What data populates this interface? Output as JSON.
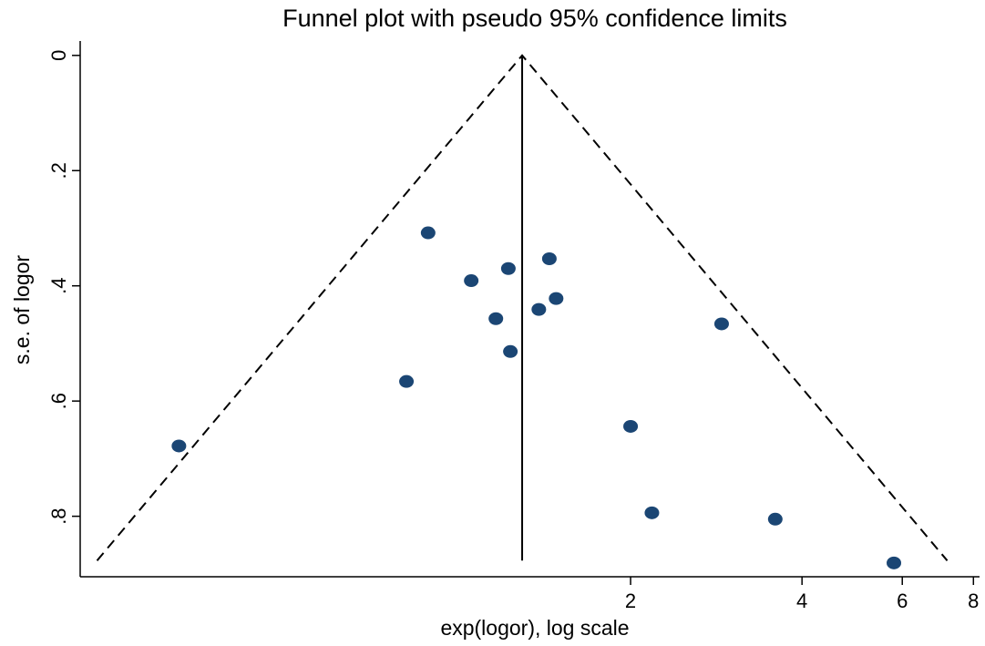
{
  "chart_data": {
    "type": "scatter",
    "title": "Funnel plot with pseudo 95% confidence limits",
    "x_label": "exp(logor), log scale",
    "y_label": "s.e. of logor",
    "x_log_scale": true,
    "y_reversed": true,
    "xlim": [
      0.216,
      8.2
    ],
    "ylim": [
      -0.025,
      0.905
    ],
    "xticks": [
      2,
      4,
      6,
      8
    ],
    "yticks": [
      0,
      {
        "value": 0.2,
        "label": ".2"
      },
      {
        "value": 0.4,
        "label": ".4"
      },
      {
        "value": 0.6,
        "label": ".6"
      },
      {
        "value": 0.8,
        "label": ".8"
      }
    ],
    "funnel": {
      "center": 1.29,
      "z": 1.96,
      "se_max": 0.877
    },
    "series": [
      {
        "color": "#1b4674",
        "x": [
          0.322,
          0.882,
          0.808,
          1.05,
          1.22,
          1.16,
          1.23,
          1.44,
          1.38,
          1.48,
          2.89,
          2.0,
          2.18,
          3.59,
          5.8
        ],
        "values": [
          0.678,
          0.308,
          0.566,
          0.391,
          0.37,
          0.457,
          0.514,
          0.353,
          0.441,
          0.422,
          0.466,
          0.644,
          0.794,
          0.805,
          0.881
        ]
      }
    ]
  }
}
